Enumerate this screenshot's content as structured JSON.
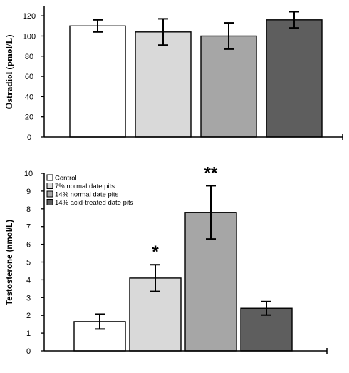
{
  "chart_data": [
    {
      "type": "bar",
      "title": "",
      "xlabel": "",
      "ylabel": "Ostradiol (pmol/L)",
      "ylim": [
        0,
        130
      ],
      "yticks": [
        "0",
        "20",
        "40",
        "60",
        "80",
        "100",
        "120"
      ],
      "grid": false,
      "categories": [
        "Control",
        "7% normal date pits",
        "14% normal date pits",
        "14% acid-treated date pits"
      ],
      "values": [
        110,
        104,
        100,
        116
      ],
      "errors": [
        6,
        13,
        13,
        8
      ],
      "colors": [
        "#ffffff",
        "#d9d9d9",
        "#a6a6a6",
        "#5e5e5e"
      ]
    },
    {
      "type": "bar",
      "title": "",
      "xlabel": "",
      "ylabel": "Testosterone (nmol/L)",
      "ylim": [
        0,
        10
      ],
      "yticks": [
        "0",
        "1",
        "2",
        "3",
        "4",
        "5",
        "6",
        "7",
        "8",
        "9",
        "10"
      ],
      "grid": false,
      "legend_position": "top-left",
      "categories": [
        "Control",
        "7% normal date pits",
        "14% normal date pits",
        "14% acid-treated date pits"
      ],
      "values": [
        1.65,
        4.1,
        7.8,
        2.4
      ],
      "errors": [
        0.42,
        0.75,
        1.5,
        0.38
      ],
      "annotations": [
        "",
        "*",
        "**",
        ""
      ],
      "colors": [
        "#ffffff",
        "#d9d9d9",
        "#a6a6a6",
        "#5e5e5e"
      ],
      "legend": [
        {
          "label": "Control"
        },
        {
          "label": "7% normal date pits"
        },
        {
          "label": "14% normal date pits"
        },
        {
          "label": "14% acid-treated date pits"
        }
      ]
    }
  ]
}
